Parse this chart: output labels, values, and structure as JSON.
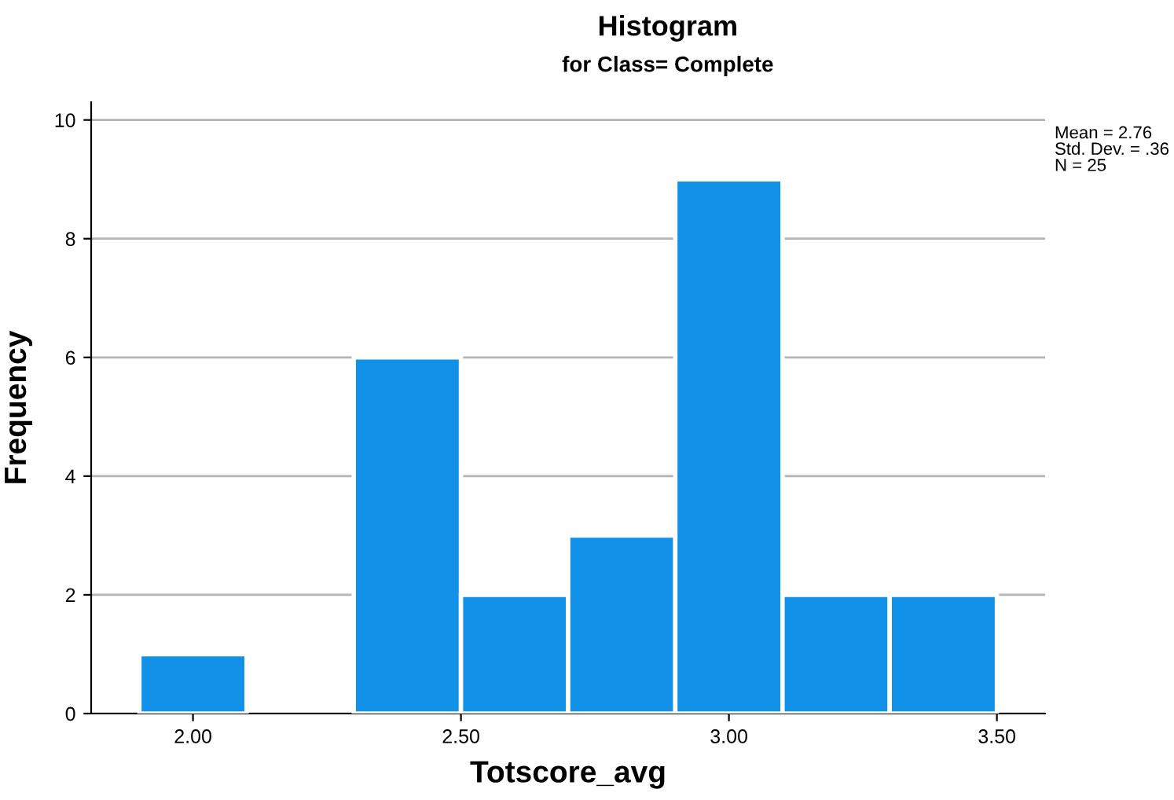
{
  "chart_data": {
    "type": "histogram",
    "title": "Histogram",
    "subtitle": "for Class= Complete",
    "xlabel": "Totscore_avg",
    "ylabel": "Frequency",
    "bins": [
      1.9,
      2.1,
      2.3,
      2.5,
      2.7,
      2.9,
      3.1,
      3.3,
      3.5
    ],
    "values": [
      1,
      0,
      6,
      2,
      3,
      9,
      2,
      2
    ],
    "color": "#1192e8",
    "xlim": [
      1.81,
      3.59
    ],
    "ylim": [
      0,
      10.3
    ],
    "xticks": [
      {
        "value": 2,
        "label": "2.00"
      },
      {
        "value": 2.5,
        "label": "2.50"
      },
      {
        "value": 3,
        "label": "3.00"
      },
      {
        "value": 3.5,
        "label": "3.50"
      }
    ],
    "yticks": [
      0,
      2,
      4,
      6,
      8,
      10
    ],
    "grid": "y",
    "annotations": [
      "Mean = 2.76\nStd. Dev. = .36\nN = 25"
    ]
  }
}
